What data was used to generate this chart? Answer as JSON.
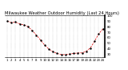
{
  "title": "Milwaukee Weather Outdoor Humidity (Last 24 Hours)",
  "hours": [
    1,
    2,
    3,
    4,
    5,
    6,
    7,
    8,
    9,
    10,
    11,
    12,
    13,
    14,
    15,
    16,
    17,
    18,
    19,
    20,
    21,
    22,
    23,
    24
  ],
  "humidity": [
    90,
    87,
    88,
    85,
    83,
    80,
    73,
    65,
    56,
    47,
    40,
    35,
    32,
    30,
    30,
    31,
    32,
    33,
    33,
    36,
    42,
    54,
    67,
    76
  ],
  "line_color": "#dd0000",
  "marker_color": "#000000",
  "bg_color": "#ffffff",
  "grid_color": "#999999",
  "ylim": [
    25,
    100
  ],
  "ytick_values": [
    30,
    40,
    50,
    60,
    70,
    80,
    90,
    100
  ],
  "title_fontsize": 3.8,
  "tick_fontsize": 2.8,
  "linewidth": 0.5,
  "markersize": 1.5
}
